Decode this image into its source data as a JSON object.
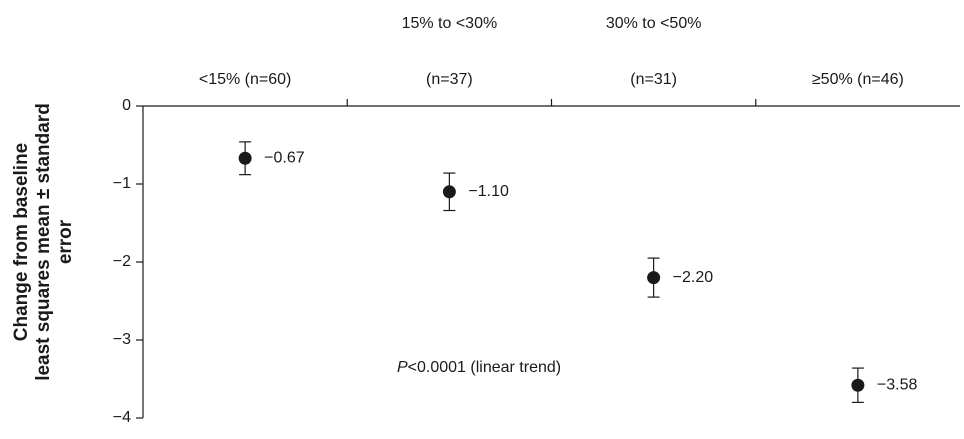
{
  "chart_data": {
    "type": "errorpoint",
    "ylabel": [
      "Change from baseline",
      "least squares mean ± standard",
      "error"
    ],
    "categories": [
      [
        "<15% (n=60)"
      ],
      [
        "15% to <30%",
        "(n=37)"
      ],
      [
        "30% to <50%",
        "(n=31)"
      ],
      [
        "≥50% (n=46)"
      ]
    ],
    "values": [
      -0.67,
      -1.1,
      -2.2,
      -3.58
    ],
    "value_labels": [
      "−0.67",
      "−1.10",
      "−2.20",
      "−3.58"
    ],
    "errors": [
      0.21,
      0.24,
      0.25,
      0.22
    ],
    "color": "#1a1a1a",
    "ylim": [
      -4,
      0
    ],
    "yticks": [
      {
        "value": -4,
        "label": "−4"
      },
      {
        "value": -3,
        "label": "−3"
      },
      {
        "value": -2,
        "label": "−2"
      },
      {
        "value": -1,
        "label": "−1"
      },
      0
    ],
    "annotation": [
      "P",
      "<0.0001 (linear trend)"
    ]
  }
}
